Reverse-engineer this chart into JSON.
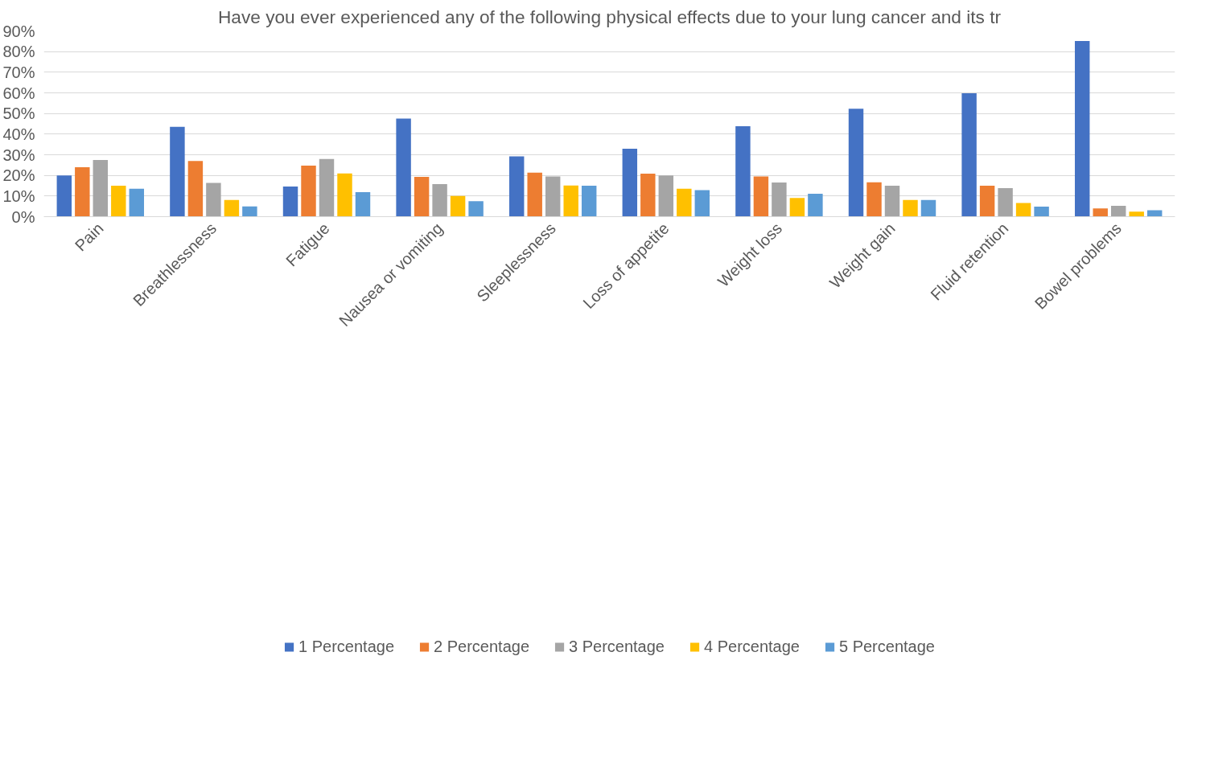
{
  "chart_data": {
    "type": "bar",
    "title": "Have you ever experienced any of the following physical effects due to your lung cancer and its tr",
    "categories": [
      "Pain",
      "Breathlessness",
      "Fatigue",
      "Nausea or vomiting",
      "Sleeplessness",
      "Loss of appetite",
      "Weight loss",
      "Weight gain",
      "Fluid retention",
      "Bowel problems"
    ],
    "series": [
      {
        "name": "1 Percentage",
        "color": "#4472c4",
        "values": [
          20,
          43.5,
          14.6,
          47.5,
          29.2,
          32.9,
          43.8,
          52.3,
          59.8,
          85.1
        ]
      },
      {
        "name": "2 Percentage",
        "color": "#ed7d31",
        "values": [
          24,
          27,
          24.7,
          19.3,
          21.3,
          20.8,
          19.5,
          16.7,
          15,
          4
        ]
      },
      {
        "name": "3 Percentage",
        "color": "#a5a5a5",
        "values": [
          27.5,
          16.4,
          28,
          15.8,
          19.5,
          20,
          16.6,
          15,
          13.8,
          5.3
        ]
      },
      {
        "name": "4 Percentage",
        "color": "#ffc000",
        "values": [
          15,
          8.1,
          20.9,
          10,
          15.1,
          13.5,
          9.1,
          8.1,
          6.6,
          2.4
        ]
      },
      {
        "name": "5 Percentage",
        "color": "#5b9bd5",
        "values": [
          13.5,
          5,
          11.9,
          7.5,
          15,
          12.9,
          11.1,
          8.1,
          4.9,
          3.1
        ]
      }
    ],
    "ylim": [
      0,
      90
    ],
    "yticks": [
      {
        "value": 0,
        "label": "0%"
      },
      {
        "value": 10,
        "label": "10%"
      },
      {
        "value": 20,
        "label": "20%"
      },
      {
        "value": 30,
        "label": "30%"
      },
      {
        "value": 40,
        "label": "40%"
      },
      {
        "value": 50,
        "label": "50%"
      },
      {
        "value": 60,
        "label": "60%"
      },
      {
        "value": 70,
        "label": "70%"
      },
      {
        "value": 80,
        "label": "80%"
      },
      {
        "value": 90,
        "label": "90%"
      }
    ],
    "grid": "y",
    "legend": "bottom"
  }
}
